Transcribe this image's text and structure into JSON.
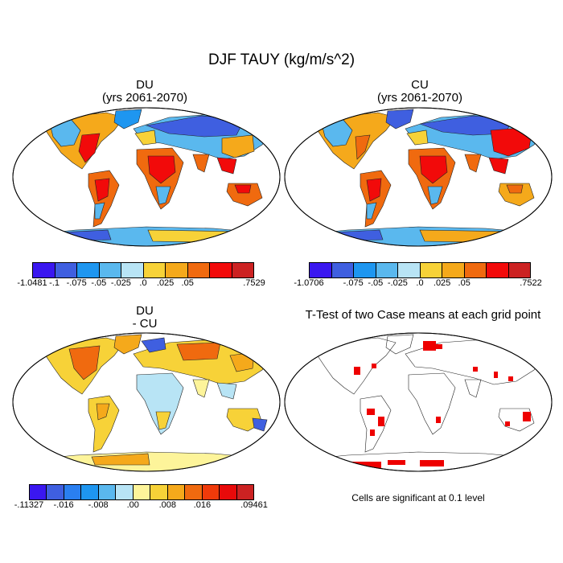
{
  "figure": {
    "title": "DJF TAUY (kg/m/s^2)"
  },
  "panels": [
    {
      "id": "du",
      "title_line1": "DU",
      "title_line2": "(yrs 2061-2070)",
      "colorbar": {
        "colors": [
          "#3a17f0",
          "#3f5fe0",
          "#1e96f0",
          "#5ab8ee",
          "#b8e4f5",
          "#f7d238",
          "#f5a91b",
          "#f06a0f",
          "#f20a0a",
          "#cc2222"
        ],
        "labels": [
          "-1.0481",
          "-.1",
          "-.075",
          "-.05",
          "-.025",
          ".0",
          ".025",
          ".05",
          "",
          ".7529"
        ]
      }
    },
    {
      "id": "cu",
      "title_line1": "CU",
      "title_line2": "(yrs 2061-2070)",
      "colorbar": {
        "colors": [
          "#3a17f0",
          "#3f5fe0",
          "#1e96f0",
          "#5ab8ee",
          "#b8e4f5",
          "#f7d238",
          "#f5a91b",
          "#f06a0f",
          "#f20a0a",
          "#cc2222"
        ],
        "labels": [
          "-1.0706",
          "",
          "-.075",
          "-.05",
          "-.025",
          ".0",
          ".025",
          ".05",
          "",
          ".7522"
        ]
      }
    },
    {
      "id": "diff",
      "title_line1": "DU",
      "title_line2": "- CU",
      "colorbar": {
        "colors": [
          "#3a17f0",
          "#3f5fe0",
          "#2a7ff0",
          "#1e96f0",
          "#5ab8ee",
          "#b8e4f5",
          "#fdf49a",
          "#f7d238",
          "#f5a91b",
          "#f06a0f",
          "#f03a0a",
          "#e80a0a",
          "#cc2222"
        ],
        "labels": [
          "-.11327",
          "",
          "-.016",
          "",
          "-.008",
          "",
          ".00",
          "",
          ".008",
          "",
          ".016",
          "",
          ".09461"
        ]
      }
    },
    {
      "id": "ttest",
      "title_line1": "T-Test of two Case means at each grid point",
      "note": "Cells are significant at 0.1 level"
    }
  ]
}
